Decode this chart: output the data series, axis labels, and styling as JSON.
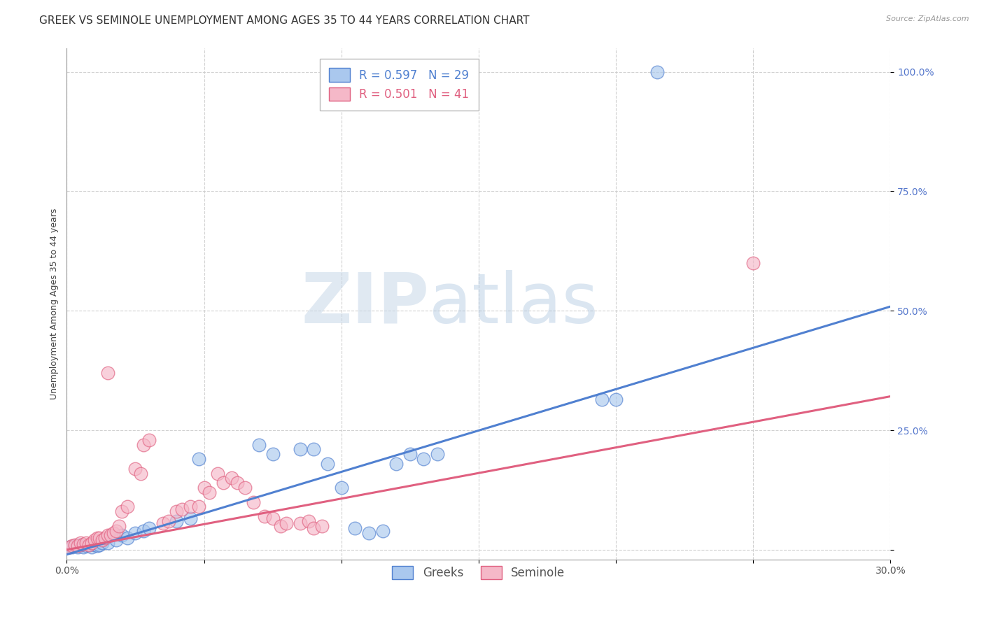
{
  "title": "GREEK VS SEMINOLE UNEMPLOYMENT AMONG AGES 35 TO 44 YEARS CORRELATION CHART",
  "source": "Source: ZipAtlas.com",
  "ylabel_label": "Unemployment Among Ages 35 to 44 years",
  "xlim": [
    0.0,
    0.3
  ],
  "ylim": [
    -0.02,
    1.05
  ],
  "x_ticks": [
    0.0,
    0.05,
    0.1,
    0.15,
    0.2,
    0.25,
    0.3
  ],
  "x_tick_labels": [
    "0.0%",
    "",
    "",
    "",
    "",
    "",
    "30.0%"
  ],
  "y_ticks": [
    0.0,
    0.25,
    0.5,
    0.75,
    1.0
  ],
  "y_tick_labels": [
    "",
    "25.0%",
    "50.0%",
    "75.0%",
    "100.0%"
  ],
  "greek_color": "#aac8ee",
  "seminole_color": "#f5b8c8",
  "greek_line_color": "#5080d0",
  "seminole_line_color": "#e06080",
  "watermark_zip": "ZIP",
  "watermark_atlas": "atlas",
  "legend_label_greek": "Greeks",
  "legend_label_seminole": "Seminole",
  "greek_line_slope": 1.73,
  "greek_line_intercept": -0.01,
  "seminole_line_slope": 1.07,
  "seminole_line_intercept": 0.0,
  "greek_points": [
    [
      0.001,
      0.005
    ],
    [
      0.002,
      0.005
    ],
    [
      0.003,
      0.008
    ],
    [
      0.004,
      0.005
    ],
    [
      0.005,
      0.01
    ],
    [
      0.006,
      0.005
    ],
    [
      0.007,
      0.008
    ],
    [
      0.008,
      0.01
    ],
    [
      0.009,
      0.005
    ],
    [
      0.01,
      0.01
    ],
    [
      0.011,
      0.008
    ],
    [
      0.012,
      0.01
    ],
    [
      0.013,
      0.015
    ],
    [
      0.015,
      0.015
    ],
    [
      0.018,
      0.02
    ],
    [
      0.02,
      0.03
    ],
    [
      0.022,
      0.025
    ],
    [
      0.025,
      0.035
    ],
    [
      0.028,
      0.04
    ],
    [
      0.03,
      0.045
    ],
    [
      0.04,
      0.06
    ],
    [
      0.045,
      0.065
    ],
    [
      0.048,
      0.19
    ],
    [
      0.07,
      0.22
    ],
    [
      0.075,
      0.2
    ],
    [
      0.085,
      0.21
    ],
    [
      0.09,
      0.21
    ],
    [
      0.095,
      0.18
    ],
    [
      0.12,
      0.18
    ],
    [
      0.125,
      0.2
    ],
    [
      0.13,
      0.19
    ],
    [
      0.135,
      0.2
    ],
    [
      0.1,
      0.13
    ],
    [
      0.105,
      0.045
    ],
    [
      0.11,
      0.035
    ],
    [
      0.115,
      0.04
    ],
    [
      0.195,
      0.315
    ],
    [
      0.2,
      0.315
    ],
    [
      0.215,
      1.0
    ]
  ],
  "seminole_points": [
    [
      0.001,
      0.005
    ],
    [
      0.002,
      0.008
    ],
    [
      0.003,
      0.01
    ],
    [
      0.004,
      0.008
    ],
    [
      0.005,
      0.015
    ],
    [
      0.006,
      0.012
    ],
    [
      0.007,
      0.015
    ],
    [
      0.008,
      0.01
    ],
    [
      0.009,
      0.015
    ],
    [
      0.01,
      0.02
    ],
    [
      0.011,
      0.025
    ],
    [
      0.012,
      0.025
    ],
    [
      0.013,
      0.02
    ],
    [
      0.014,
      0.025
    ],
    [
      0.015,
      0.03
    ],
    [
      0.016,
      0.03
    ],
    [
      0.017,
      0.035
    ],
    [
      0.018,
      0.04
    ],
    [
      0.019,
      0.05
    ],
    [
      0.02,
      0.08
    ],
    [
      0.022,
      0.09
    ],
    [
      0.025,
      0.17
    ],
    [
      0.027,
      0.16
    ],
    [
      0.028,
      0.22
    ],
    [
      0.03,
      0.23
    ],
    [
      0.015,
      0.37
    ],
    [
      0.035,
      0.055
    ],
    [
      0.037,
      0.06
    ],
    [
      0.04,
      0.08
    ],
    [
      0.042,
      0.085
    ],
    [
      0.045,
      0.09
    ],
    [
      0.048,
      0.09
    ],
    [
      0.05,
      0.13
    ],
    [
      0.052,
      0.12
    ],
    [
      0.055,
      0.16
    ],
    [
      0.057,
      0.14
    ],
    [
      0.06,
      0.15
    ],
    [
      0.062,
      0.14
    ],
    [
      0.065,
      0.13
    ],
    [
      0.068,
      0.1
    ],
    [
      0.072,
      0.07
    ],
    [
      0.075,
      0.065
    ],
    [
      0.078,
      0.05
    ],
    [
      0.08,
      0.055
    ],
    [
      0.085,
      0.055
    ],
    [
      0.088,
      0.06
    ],
    [
      0.09,
      0.045
    ],
    [
      0.093,
      0.05
    ],
    [
      0.25,
      0.6
    ]
  ],
  "background_color": "#ffffff",
  "grid_color": "#cccccc",
  "title_fontsize": 11,
  "axis_fontsize": 9,
  "tick_fontsize": 10
}
